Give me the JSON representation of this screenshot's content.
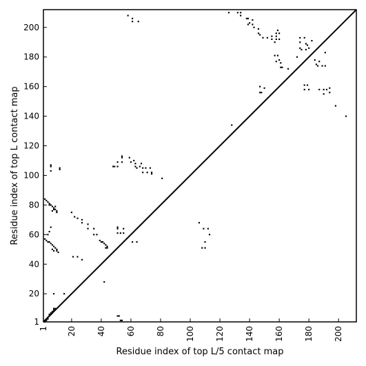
{
  "chart_data": {
    "type": "scatter",
    "title": "",
    "xlabel": "Residue index of top L/5 contact map",
    "ylabel": "Residue index of top L contact map",
    "xlim": [
      1,
      212
    ],
    "ylim": [
      1,
      212
    ],
    "grid": false,
    "xticks": [
      1,
      20,
      40,
      60,
      80,
      100,
      120,
      140,
      160,
      180,
      200
    ],
    "yticks": [
      1,
      20,
      40,
      60,
      80,
      100,
      120,
      140,
      160,
      180,
      200
    ],
    "marker_color": "#000000",
    "diagonal": [
      [
        1,
        1
      ],
      [
        212,
        212
      ]
    ],
    "points": [
      [
        2,
        1
      ],
      [
        2,
        2
      ],
      [
        3,
        2
      ],
      [
        3,
        3
      ],
      [
        4,
        3
      ],
      [
        4,
        4
      ],
      [
        5,
        5
      ],
      [
        5,
        6
      ],
      [
        6,
        6
      ],
      [
        6,
        7
      ],
      [
        7,
        7
      ],
      [
        7,
        8
      ],
      [
        8,
        9
      ],
      [
        8,
        10
      ],
      [
        9,
        10
      ],
      [
        2,
        84
      ],
      [
        3,
        83
      ],
      [
        4,
        82
      ],
      [
        5,
        81
      ],
      [
        5,
        80
      ],
      [
        6,
        80
      ],
      [
        7,
        79
      ],
      [
        8,
        78
      ],
      [
        8,
        77
      ],
      [
        9,
        77
      ],
      [
        10,
        76
      ],
      [
        10,
        75
      ],
      [
        7,
        76
      ],
      [
        9,
        79
      ],
      [
        2,
        57
      ],
      [
        3,
        56
      ],
      [
        4,
        55
      ],
      [
        5,
        55
      ],
      [
        6,
        54
      ],
      [
        7,
        53
      ],
      [
        8,
        52
      ],
      [
        9,
        51
      ],
      [
        10,
        50
      ],
      [
        10,
        49
      ],
      [
        7,
        50
      ],
      [
        8,
        49
      ],
      [
        11,
        48
      ],
      [
        5,
        62
      ],
      [
        6,
        65
      ],
      [
        4,
        60
      ],
      [
        6,
        107
      ],
      [
        6,
        106
      ],
      [
        6,
        103
      ],
      [
        12,
        104
      ],
      [
        12,
        105
      ],
      [
        8,
        20
      ],
      [
        15,
        20
      ],
      [
        20,
        75
      ],
      [
        22,
        72
      ],
      [
        24,
        71
      ],
      [
        27,
        70
      ],
      [
        27,
        68
      ],
      [
        31,
        67
      ],
      [
        31,
        64
      ],
      [
        35,
        64
      ],
      [
        35,
        60
      ],
      [
        37,
        60
      ],
      [
        39,
        56
      ],
      [
        40,
        55
      ],
      [
        41,
        55
      ],
      [
        42,
        54
      ],
      [
        43,
        53
      ],
      [
        44,
        52
      ],
      [
        44,
        51
      ],
      [
        43,
        51
      ],
      [
        21,
        45
      ],
      [
        24,
        45
      ],
      [
        27,
        43
      ],
      [
        42,
        28
      ],
      [
        51,
        5
      ],
      [
        52,
        5
      ],
      [
        53,
        2
      ],
      [
        54,
        2
      ],
      [
        48,
        106
      ],
      [
        49,
        106
      ],
      [
        51,
        106
      ],
      [
        51,
        109
      ],
      [
        54,
        109
      ],
      [
        54,
        112
      ],
      [
        54,
        113
      ],
      [
        59,
        112
      ],
      [
        60,
        109
      ],
      [
        62,
        110
      ],
      [
        63,
        108
      ],
      [
        63,
        106
      ],
      [
        64,
        105
      ],
      [
        66,
        106
      ],
      [
        67,
        108
      ],
      [
        68,
        105
      ],
      [
        68,
        102
      ],
      [
        70,
        105
      ],
      [
        71,
        102
      ],
      [
        73,
        105
      ],
      [
        74,
        102
      ],
      [
        74,
        101
      ],
      [
        51,
        65
      ],
      [
        51,
        64
      ],
      [
        51,
        61
      ],
      [
        53,
        61
      ],
      [
        55,
        64
      ],
      [
        55,
        61
      ],
      [
        61,
        55
      ],
      [
        64,
        55
      ],
      [
        58,
        208
      ],
      [
        61,
        206
      ],
      [
        61,
        204
      ],
      [
        65,
        204
      ],
      [
        81,
        98
      ],
      [
        106,
        68
      ],
      [
        108,
        51
      ],
      [
        109,
        64
      ],
      [
        110,
        55
      ],
      [
        110,
        51
      ],
      [
        112,
        64
      ],
      [
        113,
        60
      ],
      [
        126,
        210
      ],
      [
        128,
        134
      ],
      [
        132,
        210
      ],
      [
        134,
        210
      ],
      [
        134,
        208
      ],
      [
        138,
        206
      ],
      [
        139,
        206
      ],
      [
        139,
        202
      ],
      [
        140,
        203
      ],
      [
        142,
        205
      ],
      [
        142,
        202
      ],
      [
        143,
        200
      ],
      [
        146,
        199
      ],
      [
        146,
        196
      ],
      [
        147,
        195
      ],
      [
        149,
        193
      ],
      [
        152,
        193
      ],
      [
        155,
        194
      ],
      [
        155,
        192
      ],
      [
        157,
        190
      ],
      [
        158,
        196
      ],
      [
        158,
        194
      ],
      [
        158,
        192
      ],
      [
        159,
        198
      ],
      [
        160,
        196
      ],
      [
        160,
        192
      ],
      [
        147,
        160
      ],
      [
        147,
        156
      ],
      [
        148,
        156
      ],
      [
        150,
        159
      ],
      [
        157,
        181
      ],
      [
        158,
        177
      ],
      [
        159,
        181
      ],
      [
        160,
        178
      ],
      [
        161,
        176
      ],
      [
        161,
        173
      ],
      [
        162,
        173
      ],
      [
        166,
        172
      ],
      [
        172,
        180
      ],
      [
        174,
        193
      ],
      [
        174,
        190
      ],
      [
        174,
        186
      ],
      [
        175,
        185
      ],
      [
        177,
        193
      ],
      [
        178,
        189
      ],
      [
        178,
        185
      ],
      [
        179,
        188
      ],
      [
        180,
        186
      ],
      [
        182,
        191
      ],
      [
        177,
        161
      ],
      [
        177,
        158
      ],
      [
        179,
        161
      ],
      [
        180,
        158
      ],
      [
        184,
        178
      ],
      [
        185,
        175
      ],
      [
        186,
        174
      ],
      [
        187,
        177
      ],
      [
        189,
        174
      ],
      [
        191,
        174
      ],
      [
        191,
        183
      ],
      [
        187,
        158
      ],
      [
        190,
        158
      ],
      [
        190,
        155
      ],
      [
        192,
        158
      ],
      [
        194,
        159
      ],
      [
        194,
        156
      ],
      [
        198,
        147
      ],
      [
        205,
        140
      ]
    ]
  }
}
